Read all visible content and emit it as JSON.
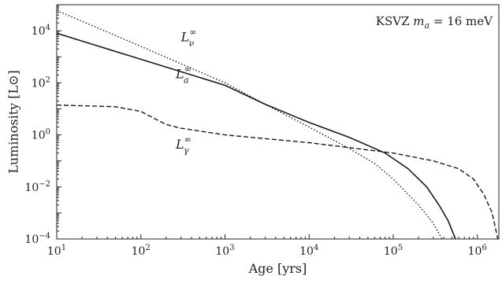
{
  "chart_data": {
    "type": "line",
    "xlabel": "Age [yrs]",
    "ylabel": "Luminosity [L⊙]",
    "x_scale": "log",
    "y_scale": "log",
    "xlim": [
      10,
      1800000
    ],
    "ylim": [
      0.0001,
      100000
    ],
    "grid": false,
    "legend": "none",
    "annotation": "KSVZ m_a = 16 meV",
    "x_ticks": [
      {
        "value": 10,
        "mantissa": "10",
        "exp": "1"
      },
      {
        "value": 100,
        "mantissa": "10",
        "exp": "2"
      },
      {
        "value": 1000,
        "mantissa": "10",
        "exp": "3"
      },
      {
        "value": 10000,
        "mantissa": "10",
        "exp": "4"
      },
      {
        "value": 100000,
        "mantissa": "10",
        "exp": "5"
      },
      {
        "value": 1000000,
        "mantissa": "10",
        "exp": "6"
      }
    ],
    "y_ticks": [
      {
        "value": 0.0001,
        "mantissa": "10",
        "exp": "−4"
      },
      {
        "value": 0.01,
        "mantissa": "10",
        "exp": "−2"
      },
      {
        "value": 1,
        "mantissa": "10",
        "exp": "0"
      },
      {
        "value": 100,
        "mantissa": "10",
        "exp": "2"
      },
      {
        "value": 10000,
        "mantissa": "10",
        "exp": "4"
      }
    ],
    "series": [
      {
        "label": "L_a^∞",
        "style": "solid",
        "color": "#1a1a1a",
        "points": [
          [
            10,
            8000
          ],
          [
            100,
            800
          ],
          [
            1000,
            80
          ],
          [
            3000,
            15
          ],
          [
            10000,
            3
          ],
          [
            30000,
            0.8
          ],
          [
            80000,
            0.2
          ],
          [
            150000,
            0.05
          ],
          [
            250000,
            0.01
          ],
          [
            350000,
            0.002
          ],
          [
            450000,
            0.0005
          ],
          [
            550000,
            0.0001
          ]
        ]
      },
      {
        "label": "L_ν^∞",
        "style": "dotted",
        "color": "#1a1a1a",
        "points": [
          [
            10,
            60000
          ],
          [
            100,
            2500
          ],
          [
            1000,
            100
          ],
          [
            3000,
            15
          ],
          [
            10000,
            2
          ],
          [
            30000,
            0.3
          ],
          [
            60000,
            0.08
          ],
          [
            100000,
            0.02
          ],
          [
            200000,
            0.002
          ],
          [
            300000,
            0.0004
          ],
          [
            380000,
            0.0001
          ]
        ]
      },
      {
        "label": "L_γ^∞",
        "style": "dashed",
        "color": "#1a1a1a",
        "points": [
          [
            10,
            14
          ],
          [
            50,
            12
          ],
          [
            100,
            8
          ],
          [
            150,
            4
          ],
          [
            200,
            2.5
          ],
          [
            300,
            1.8
          ],
          [
            1000,
            1
          ],
          [
            10000,
            0.5
          ],
          [
            100000,
            0.2
          ],
          [
            300000,
            0.1
          ],
          [
            600000,
            0.05
          ],
          [
            900000,
            0.02
          ],
          [
            1200000,
            0.005
          ],
          [
            1500000,
            0.001
          ],
          [
            1750000,
            0.0001
          ]
        ]
      }
    ],
    "curve_labels": [
      {
        "base": "L",
        "sub": "ν",
        "sup": "∞",
        "x": 300,
        "y": 4000
      },
      {
        "base": "L",
        "sub": "a",
        "sup": "∞",
        "x": 260,
        "y": 150
      },
      {
        "base": "L",
        "sub": "γ",
        "sup": "∞",
        "x": 260,
        "y": 0.3
      }
    ]
  }
}
